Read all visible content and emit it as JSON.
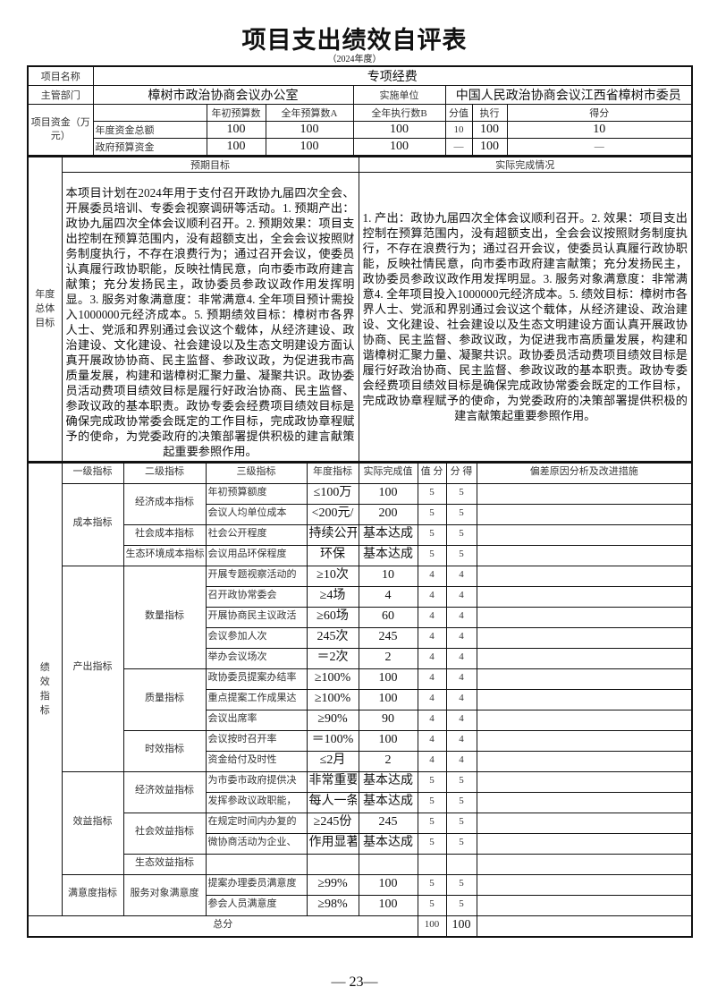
{
  "header": {
    "title": "项目支出绩效自评表",
    "year": "（2024年度）"
  },
  "basic": {
    "project_name_label": "项目名称",
    "project_name": "专项经费",
    "dept_label": "主管部门",
    "dept": "樟树市政治协商会议办公室",
    "impl_label": "实施单位",
    "impl": "中国人民政治协商会议江西省樟树市委员",
    "funds_label": "项目资金（万元）",
    "funds_headers": [
      "年初预算数",
      "全年预算数A",
      "全年执行数B",
      "分值",
      "执行",
      "得分"
    ],
    "funds_rows": [
      {
        "label": "年度资金总额",
        "initial": "100",
        "annual": "100",
        "executed": "100",
        "weight": "10",
        "rate": "100",
        "score": "10"
      },
      {
        "label": "政府预算资金",
        "initial": "100",
        "annual": "100",
        "executed": "100",
        "weight": "—",
        "rate": "100",
        "score": "—"
      }
    ]
  },
  "goals": {
    "label": "年度总体目标",
    "expected_header": "预期目标",
    "actual_header": "实际完成情况",
    "expected": "本项目计划在2024年用于支付召开政协九届四次全会、开展委员培训、专委会视察调研等活动。1. 预期产出：政协九届四次全体会议顺利召开。2. 预期效果：项目支出控制在预算范围内，没有超额支出，全会会议按照财务制度执行，不存在浪费行为；通过召开会议，使委员认真履行政协职能，反映社情民意，向市委市政府建言献策；充分发扬民主，政协委员参政议政作用发挥明显。3. 服务对象满意度：非常满意4. 全年项目预计需投入1000000元经济成本。5. 预期绩效目标：樟树市各界人士、党派和界别通过会议这个载体，从经济建设、政治建设、文化建设、社会建设以及生态文明建设方面认真开展政协协商、民主监督、参政议政，为促进我市高质量发展，构建和谐樟树汇聚力量、凝聚共识。政协委员活动费项目绩效目标是履行好政治协商、民主监督、参政议政的基本职责。政协专委会经费项目绩效目标是确保完成政协常委会既定的工作目标，完成政协章程赋予的使命，为党委政府的决策部署提供积极的建言献策起重要参照作用。",
    "actual": "1. 产出：政协九届四次全体会议顺利召开。2. 效果：项目支出控制在预算范围内，没有超额支出，全会会议按照财务制度执行，不存在浪费行为；通过召开会议，使委员认真履行政协职能，反映社情民意，向市委市政府建言献策；充分发扬民主，政协委员参政议政作用发挥明显。3. 服务对象满意度：非常满意4. 全年项目投入1000000元经济成本。5. 绩效目标：樟树市各界人士、党派和界别通过会议这个载体，从经济建设、政治建设、文化建设、社会建设以及生态文明建设方面认真开展政协协商、民主监督、参政议政，为促进我市高质量发展，构建和谐樟树汇聚力量、凝聚共识。政协委员活动费项目绩效目标是履行好政治协商、民主监督、参政议政的基本职责。政协专委会经费项目绩效目标是确保完成政协常委会既定的工作目标，完成政协章程赋予的使命，为党委政府的决策部署提供积极的建言献策起重要参照作用。"
  },
  "indicators": {
    "label": "绩效指标",
    "headers": [
      "一级指标",
      "二级指标",
      "三级指标",
      "年度指标",
      "实际完成值",
      "值 分",
      "分 得",
      "偏差原因分析及改进措施"
    ],
    "groups": [
      {
        "level1": "成本指标",
        "subgroups": [
          {
            "level2": "经济成本指标",
            "items": [
              {
                "name": "年初预算额度",
                "target": "≤100万",
                "actual": "100",
                "weight": "5",
                "score": "5"
              },
              {
                "name": "会议人均单位成本",
                "target": "<200元/",
                "actual": "200",
                "weight": "5",
                "score": "5"
              }
            ]
          },
          {
            "level2": "社会成本指标",
            "items": [
              {
                "name": "社会公开程度",
                "target": "持续公开",
                "actual": "基本达成",
                "weight": "5",
                "score": "5"
              }
            ]
          },
          {
            "level2": "生态环境成本指标",
            "items": [
              {
                "name": "会议用品环保程度",
                "target": "环保",
                "actual": "基本达成",
                "weight": "5",
                "score": "5"
              }
            ]
          }
        ]
      },
      {
        "level1": "产出指标",
        "subgroups": [
          {
            "level2": "数量指标",
            "items": [
              {
                "name": "开展专题视察活动的",
                "target": "≥10次",
                "actual": "10",
                "weight": "4",
                "score": "4"
              },
              {
                "name": "召开政协常委会",
                "target": "≥4场",
                "actual": "4",
                "weight": "4",
                "score": "4"
              },
              {
                "name": "开展协商民主议政活",
                "target": "≥60场",
                "actual": "60",
                "weight": "4",
                "score": "4"
              },
              {
                "name": "会议参加人次",
                "target": "245次",
                "actual": "245",
                "weight": "4",
                "score": "4"
              },
              {
                "name": "举办会议场次",
                "target": "＝2次",
                "actual": "2",
                "weight": "4",
                "score": "4"
              }
            ]
          },
          {
            "level2": "质量指标",
            "items": [
              {
                "name": "政协委员提案办结率",
                "target": "≥100%",
                "actual": "100",
                "weight": "4",
                "score": "4"
              },
              {
                "name": "重点提案工作成果达",
                "target": "≥100%",
                "actual": "100",
                "weight": "4",
                "score": "4"
              },
              {
                "name": "会议出席率",
                "target": "≥90%",
                "actual": "90",
                "weight": "4",
                "score": "4"
              }
            ]
          },
          {
            "level2": "时效指标",
            "items": [
              {
                "name": "会议按时召开率",
                "target": "＝100%",
                "actual": "100",
                "weight": "4",
                "score": "4"
              },
              {
                "name": "资金给付及时性",
                "target": "≤2月",
                "actual": "2",
                "weight": "4",
                "score": "4"
              }
            ]
          }
        ]
      },
      {
        "level1": "效益指标",
        "subgroups": [
          {
            "level2": "经济效益指标",
            "items": [
              {
                "name": "为市委市政府提供决",
                "target": "非常重要",
                "actual": "基本达成",
                "weight": "5",
                "score": "5"
              },
              {
                "name": "发挥参政议政职能，",
                "target": "每人一条",
                "actual": "基本达成",
                "weight": "5",
                "score": "5"
              }
            ]
          },
          {
            "level2": "社会效益指标",
            "items": [
              {
                "name": "在规定时间内办复的",
                "target": "≥245份",
                "actual": "245",
                "weight": "5",
                "score": "5"
              },
              {
                "name": "微协商活动为企业、",
                "target": "作用显著",
                "actual": "基本达成",
                "weight": "5",
                "score": "5"
              }
            ]
          },
          {
            "level2": "生态效益指标",
            "items": [
              {
                "name": "",
                "target": "",
                "actual": "",
                "weight": "",
                "score": ""
              }
            ]
          }
        ]
      },
      {
        "level1": "满意度指标",
        "subgroups": [
          {
            "level2": "服务对象满意度",
            "items": [
              {
                "name": "提案办理委员满意度",
                "target": "≥99%",
                "actual": "100",
                "weight": "5",
                "score": "5"
              },
              {
                "name": "参会人员满意度",
                "target": "≥98%",
                "actual": "100",
                "weight": "5",
                "score": "5"
              }
            ]
          }
        ]
      }
    ],
    "total_label": "总分",
    "total_weight": "100",
    "total_score": "100"
  },
  "footer": {
    "page": "— 23—"
  }
}
